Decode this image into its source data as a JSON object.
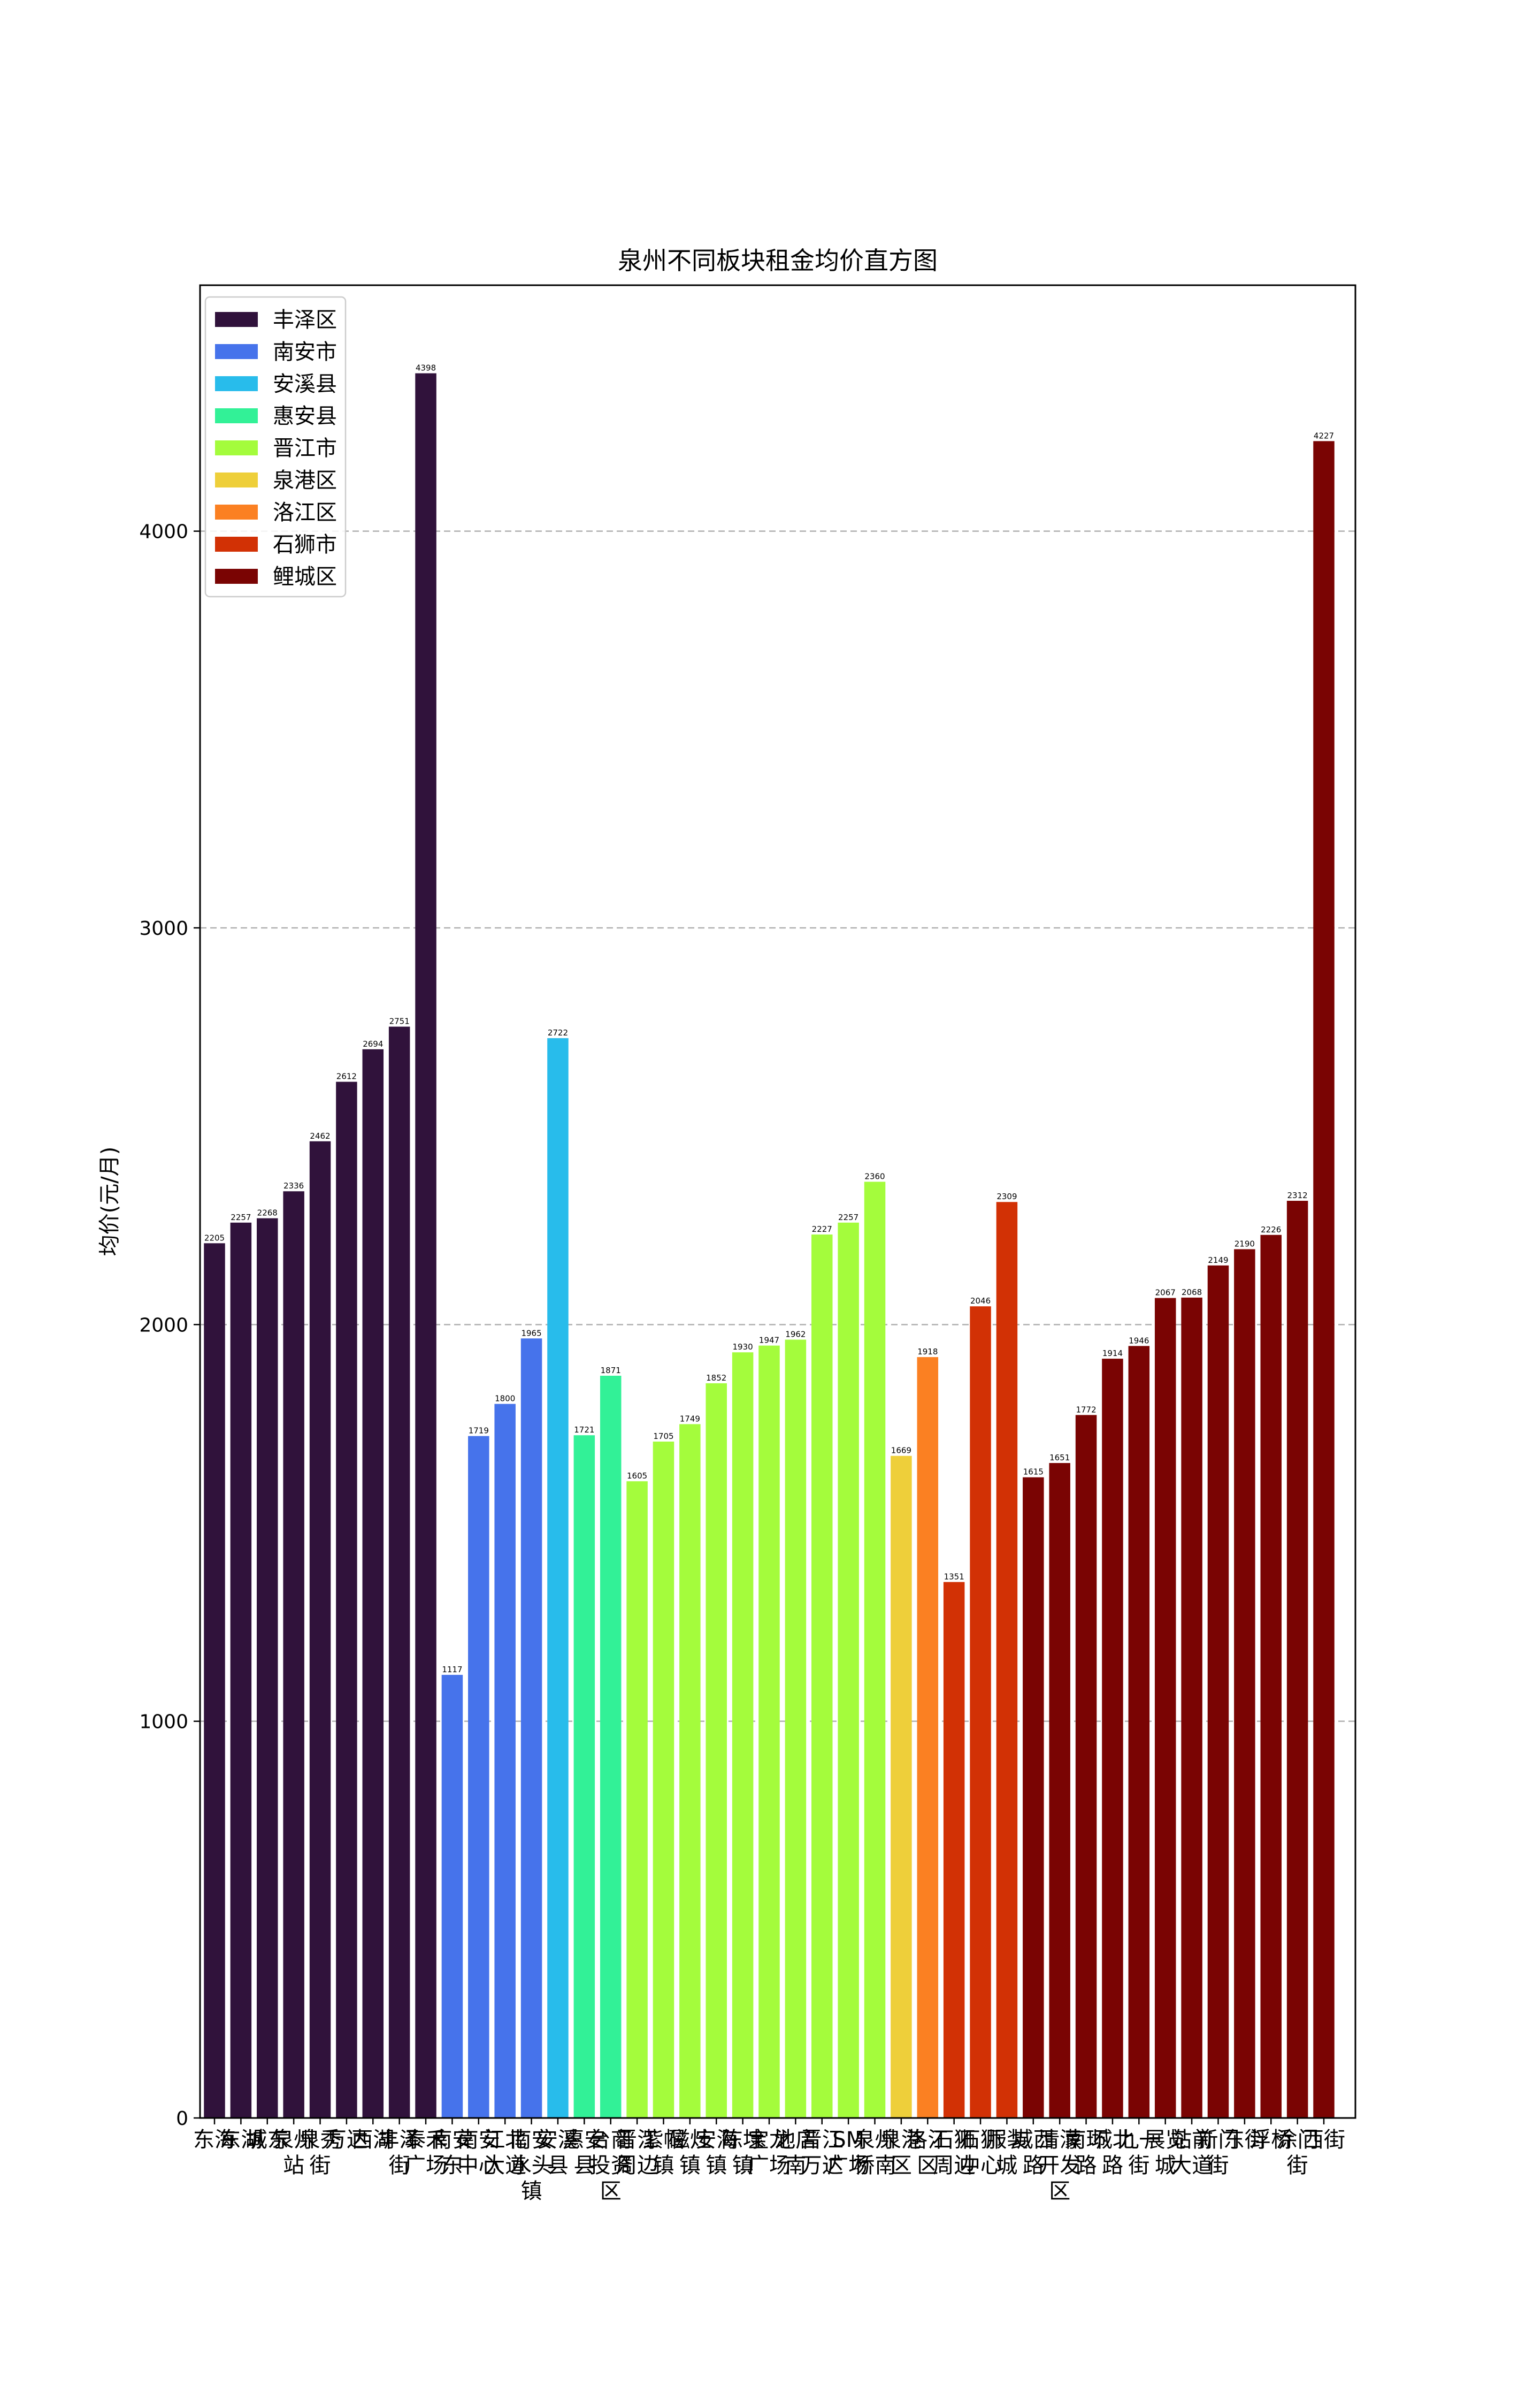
{
  "chart_data": {
    "type": "bar",
    "title": "泉州不同板块租金均价直方图",
    "xlabel": "",
    "ylabel": "均价(元/月)",
    "ylim": [
      0,
      4620
    ],
    "yticks": [
      0,
      1000,
      2000,
      3000,
      4000
    ],
    "grid": "y-dashed",
    "legend_position": "top-left",
    "categories": [
      "东海",
      "东湖",
      "城东",
      "泉州站",
      "泉秀街",
      "万达",
      "西湖",
      "丰泽街",
      "泰禾广场",
      "南安东",
      "南安中心",
      "江北大道",
      "南安水头镇",
      "安溪县",
      "惠安县",
      "台商投资区",
      "晋江周边",
      "紫帽镇",
      "磁灶镇",
      "安海镇",
      "陈埭镇",
      "宝龙广场",
      "池店南",
      "晋江万达",
      "SM广场",
      "泉州桥南",
      "泉港区",
      "洛江区",
      "石狮周边",
      "石狮中心",
      "服装城",
      "城西路",
      "清濛开发区",
      "南环路",
      "城北路",
      "九一街",
      "展览城",
      "站前大道",
      "新门街",
      "东街",
      "浮桥",
      "涂门街",
      "西街"
    ],
    "values": [
      2205,
      2257,
      2268,
      2336,
      2462,
      2612,
      2694,
      2751,
      4398,
      1117,
      1719,
      1800,
      1965,
      2722,
      1721,
      1871,
      1605,
      1705,
      1749,
      1852,
      1930,
      1947,
      1962,
      2227,
      2257,
      2360,
      1669,
      1918,
      1351,
      2046,
      2309,
      1615,
      1651,
      1772,
      1914,
      1946,
      2067,
      2068,
      2149,
      2190,
      2226,
      2312,
      4227
    ],
    "series": [
      {
        "name": "丰泽区",
        "color": "#30123b",
        "count": 9
      },
      {
        "name": "南安市",
        "color": "#4673eb",
        "count": 4
      },
      {
        "name": "安溪县",
        "color": "#28bceb",
        "count": 1
      },
      {
        "name": "惠安县",
        "color": "#32f197",
        "count": 2
      },
      {
        "name": "晋江市",
        "color": "#a4fc3c",
        "count": 10
      },
      {
        "name": "泉港区",
        "color": "#eecf3a",
        "count": 1
      },
      {
        "name": "洛江区",
        "color": "#fb8022",
        "count": 1
      },
      {
        "name": "石狮市",
        "color": "#d23105",
        "count": 3
      },
      {
        "name": "鲤城区",
        "color": "#7a0403",
        "count": 12
      }
    ]
  }
}
